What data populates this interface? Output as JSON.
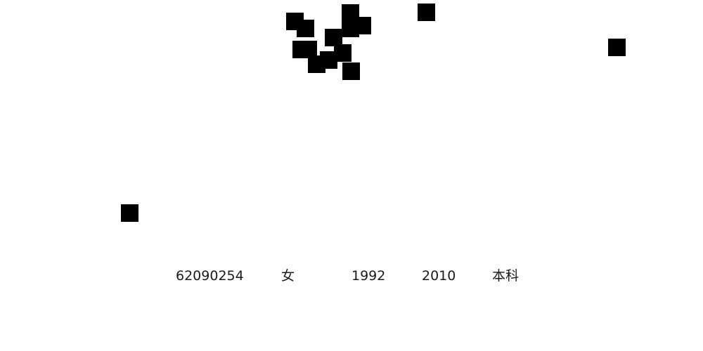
{
  "record": {
    "student_id": "62090254",
    "gender": "女",
    "birth_year": "1992",
    "entry_year": "2010",
    "degree": "本科"
  }
}
